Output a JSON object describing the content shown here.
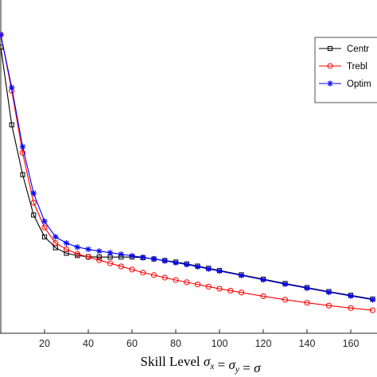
{
  "chart_data": {
    "type": "line",
    "title": "",
    "xlabel": "Skill Level σx = σy = σ",
    "xlabel_parts": {
      "prefix": "Skill Level ",
      "formula": [
        "σ",
        "x",
        " = ",
        "σ",
        "y",
        " = ",
        "σ"
      ]
    },
    "ylabel": "",
    "xlim": [
      0,
      172
    ],
    "ylim": [
      0,
      1
    ],
    "y_axis_visible_range": [
      0.05,
      1.0
    ],
    "x_ticks": [
      20,
      40,
      60,
      80,
      100,
      120,
      140,
      160
    ],
    "grid": false,
    "legend_position": "top-right",
    "series": [
      {
        "name": "Centr",
        "color": "#000000",
        "marker": "square",
        "x": [
          0,
          5,
          10,
          15,
          20,
          25,
          30,
          35,
          40,
          45,
          50,
          55,
          60,
          65,
          70,
          75,
          80,
          85,
          90,
          95,
          100,
          110,
          120,
          130,
          140,
          150,
          160,
          170
        ],
        "y": [
          0.92,
          0.67,
          0.51,
          0.38,
          0.31,
          0.275,
          0.257,
          0.25,
          0.246,
          0.245,
          0.245,
          0.245,
          0.245,
          0.243,
          0.239,
          0.234,
          0.229,
          0.223,
          0.216,
          0.209,
          0.202,
          0.188,
          0.174,
          0.16,
          0.147,
          0.134,
          0.122,
          0.11
        ]
      },
      {
        "name": "Trebl",
        "color": "#ff0000",
        "marker": "circle",
        "x": [
          0,
          5,
          10,
          15,
          20,
          25,
          30,
          35,
          40,
          45,
          50,
          55,
          60,
          65,
          70,
          75,
          80,
          85,
          90,
          95,
          100,
          105,
          110,
          120,
          130,
          140,
          150,
          160,
          170
        ],
        "y": [
          0.96,
          0.78,
          0.58,
          0.42,
          0.34,
          0.29,
          0.27,
          0.255,
          0.245,
          0.235,
          0.225,
          0.215,
          0.205,
          0.195,
          0.187,
          0.179,
          0.171,
          0.164,
          0.157,
          0.15,
          0.143,
          0.137,
          0.131,
          0.119,
          0.108,
          0.098,
          0.089,
          0.081,
          0.074
        ]
      },
      {
        "name": "Optim",
        "color": "#0000ff",
        "marker": "asterisk",
        "x": [
          0,
          5,
          10,
          15,
          20,
          25,
          30,
          35,
          40,
          45,
          50,
          55,
          60,
          65,
          70,
          75,
          80,
          85,
          90,
          95,
          100,
          110,
          120,
          130,
          140,
          150,
          160,
          170
        ],
        "y": [
          0.96,
          0.79,
          0.6,
          0.45,
          0.36,
          0.31,
          0.29,
          0.277,
          0.27,
          0.264,
          0.259,
          0.254,
          0.249,
          0.244,
          0.239,
          0.233,
          0.227,
          0.221,
          0.214,
          0.207,
          0.2,
          0.186,
          0.172,
          0.158,
          0.145,
          0.132,
          0.12,
          0.108
        ]
      }
    ]
  }
}
